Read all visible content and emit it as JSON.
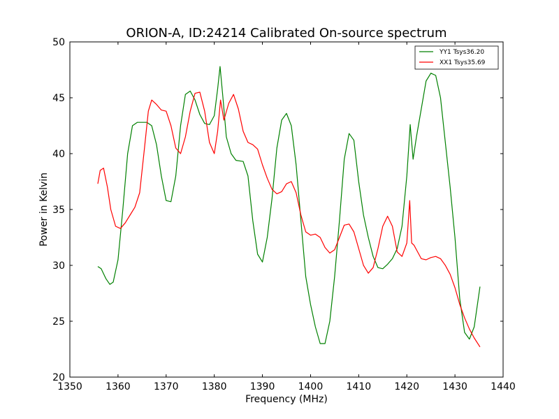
{
  "chart_data": {
    "type": "line",
    "title": "ORION-A, ID:24214 Calibrated On-source spectrum",
    "xlabel": "Frequency (MHz)",
    "ylabel": "Power in Kelvin",
    "xlim": [
      1350,
      1440
    ],
    "ylim": [
      20,
      50
    ],
    "xticks": [
      1350,
      1360,
      1370,
      1380,
      1390,
      1400,
      1410,
      1420,
      1430,
      1440
    ],
    "yticks": [
      20,
      25,
      30,
      35,
      40,
      45,
      50
    ],
    "grid": false,
    "legend_position": "top-right",
    "series": [
      {
        "name": "YY1 Tsys36.20",
        "color": "#008000",
        "x": [
          1355.8,
          1356.5,
          1357.5,
          1358.3,
          1359.0,
          1360.0,
          1361.0,
          1362.0,
          1363.0,
          1364.0,
          1365.0,
          1366.0,
          1367.0,
          1368.0,
          1369.0,
          1370.0,
          1371.0,
          1372.0,
          1373.0,
          1374.0,
          1375.0,
          1376.0,
          1377.0,
          1378.0,
          1379.0,
          1380.0,
          1380.7,
          1381.2,
          1381.8,
          1382.5,
          1383.5,
          1384.5,
          1386.0,
          1387.0,
          1388.0,
          1389.0,
          1390.0,
          1391.0,
          1392.0,
          1393.0,
          1394.0,
          1395.0,
          1396.0,
          1397.0,
          1398.0,
          1399.0,
          1400.0,
          1401.0,
          1402.0,
          1403.0,
          1404.0,
          1405.0,
          1406.0,
          1407.0,
          1408.0,
          1409.0,
          1410.0,
          1411.0,
          1412.0,
          1413.0,
          1414.0,
          1415.0,
          1416.0,
          1417.0,
          1418.0,
          1419.0,
          1420.0,
          1420.7,
          1421.3,
          1422.0,
          1423.0,
          1424.0,
          1425.0,
          1426.0,
          1427.0,
          1428.0,
          1429.0,
          1430.0,
          1431.0,
          1432.0,
          1433.0,
          1434.0,
          1435.2
        ],
        "y": [
          29.9,
          29.7,
          28.8,
          28.3,
          28.5,
          30.5,
          35.0,
          40.0,
          42.5,
          42.8,
          42.8,
          42.8,
          42.5,
          40.8,
          38.0,
          35.8,
          35.7,
          38.0,
          42.5,
          45.3,
          45.6,
          44.8,
          43.5,
          42.7,
          42.6,
          43.4,
          45.8,
          47.8,
          45.0,
          41.5,
          40.0,
          39.4,
          39.3,
          38.0,
          34.0,
          31.0,
          30.3,
          32.5,
          36.0,
          40.5,
          43.0,
          43.6,
          42.5,
          39.0,
          34.0,
          29.0,
          26.5,
          24.5,
          23.0,
          23.0,
          25.0,
          29.0,
          34.0,
          39.5,
          41.8,
          41.2,
          37.5,
          34.5,
          32.5,
          30.8,
          29.8,
          29.7,
          30.1,
          30.6,
          31.5,
          33.5,
          38.0,
          42.6,
          39.5,
          41.5,
          44.0,
          46.5,
          47.2,
          47.0,
          45.0,
          41.0,
          37.0,
          32.5,
          27.0,
          24.0,
          23.4,
          24.5,
          28.1
        ]
      },
      {
        "name": "XX1 Tsys35.69",
        "color": "#ff0000",
        "x": [
          1355.8,
          1356.3,
          1357.0,
          1357.8,
          1358.5,
          1359.5,
          1360.5,
          1361.5,
          1362.5,
          1363.5,
          1364.5,
          1365.5,
          1366.3,
          1367.0,
          1368.0,
          1369.0,
          1370.0,
          1371.0,
          1372.0,
          1373.0,
          1374.0,
          1375.0,
          1376.0,
          1377.0,
          1378.0,
          1379.0,
          1380.0,
          1380.7,
          1381.3,
          1382.0,
          1383.0,
          1384.0,
          1385.0,
          1386.0,
          1387.0,
          1388.0,
          1389.0,
          1390.0,
          1391.0,
          1392.0,
          1393.0,
          1394.0,
          1395.0,
          1396.0,
          1397.0,
          1398.0,
          1399.0,
          1400.0,
          1401.0,
          1402.0,
          1403.0,
          1404.0,
          1405.0,
          1406.0,
          1407.0,
          1408.0,
          1409.0,
          1410.0,
          1411.0,
          1412.0,
          1413.0,
          1414.0,
          1415.0,
          1416.0,
          1417.0,
          1418.0,
          1419.0,
          1420.0,
          1420.6,
          1421.0,
          1421.5,
          1422.0,
          1423.0,
          1424.0,
          1425.0,
          1426.0,
          1427.0,
          1428.0,
          1429.0,
          1430.0,
          1431.0,
          1432.0,
          1433.0,
          1434.0,
          1435.2
        ],
        "y": [
          37.3,
          38.5,
          38.7,
          37.0,
          35.0,
          33.5,
          33.3,
          33.8,
          34.5,
          35.2,
          36.5,
          40.5,
          43.8,
          44.8,
          44.4,
          43.9,
          43.8,
          42.5,
          40.5,
          40.0,
          41.5,
          43.8,
          45.4,
          45.5,
          43.8,
          41.0,
          40.0,
          42.0,
          44.8,
          43.0,
          44.5,
          45.3,
          44.0,
          42.0,
          41.0,
          40.8,
          40.4,
          39.0,
          37.8,
          36.8,
          36.4,
          36.6,
          37.3,
          37.5,
          36.5,
          34.5,
          33.0,
          32.7,
          32.8,
          32.5,
          31.6,
          31.1,
          31.4,
          32.5,
          33.6,
          33.7,
          33.0,
          31.5,
          30.0,
          29.3,
          29.8,
          31.5,
          33.5,
          34.4,
          33.5,
          31.2,
          30.8,
          32.0,
          35.8,
          32.0,
          31.8,
          31.4,
          30.6,
          30.5,
          30.7,
          30.8,
          30.6,
          30.0,
          29.2,
          28.0,
          26.5,
          25.3,
          24.3,
          23.5,
          22.7
        ]
      }
    ]
  }
}
